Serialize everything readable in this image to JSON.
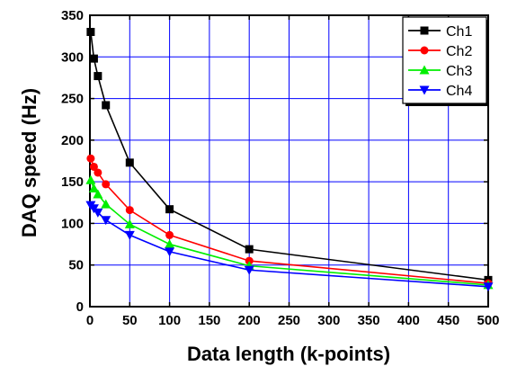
{
  "chart_data": {
    "type": "line",
    "title": "",
    "xlabel": "Data length (k-points)",
    "ylabel": "DAQ speed (Hz)",
    "xlim": [
      0,
      500
    ],
    "ylim": [
      0,
      350
    ],
    "xticks": [
      0,
      50,
      100,
      150,
      200,
      250,
      300,
      350,
      400,
      450,
      500
    ],
    "yticks": [
      0,
      50,
      100,
      150,
      200,
      250,
      300,
      350
    ],
    "grid": true,
    "legend_position": "top-right",
    "series": [
      {
        "name": "Ch1",
        "color": "#000000",
        "marker": "square",
        "x": [
          1,
          5,
          10,
          20,
          50,
          100,
          200,
          500
        ],
        "y": [
          330,
          298,
          277,
          242,
          173,
          117,
          69,
          32
        ]
      },
      {
        "name": "Ch2",
        "color": "#ff0000",
        "marker": "circle",
        "x": [
          1,
          5,
          10,
          20,
          50,
          100,
          200,
          500
        ],
        "y": [
          178,
          168,
          161,
          147,
          116,
          86,
          55,
          28
        ]
      },
      {
        "name": "Ch3",
        "color": "#00ee00",
        "marker": "triangle-up",
        "x": [
          1,
          5,
          10,
          20,
          50,
          100,
          200,
          500
        ],
        "y": [
          152,
          142,
          135,
          123,
          99,
          75,
          49,
          26
        ]
      },
      {
        "name": "Ch4",
        "color": "#0000ff",
        "marker": "triangle-down",
        "x": [
          1,
          5,
          10,
          20,
          50,
          100,
          200,
          500
        ],
        "y": [
          122,
          118,
          113,
          104,
          86,
          66,
          44,
          24
        ]
      }
    ]
  }
}
